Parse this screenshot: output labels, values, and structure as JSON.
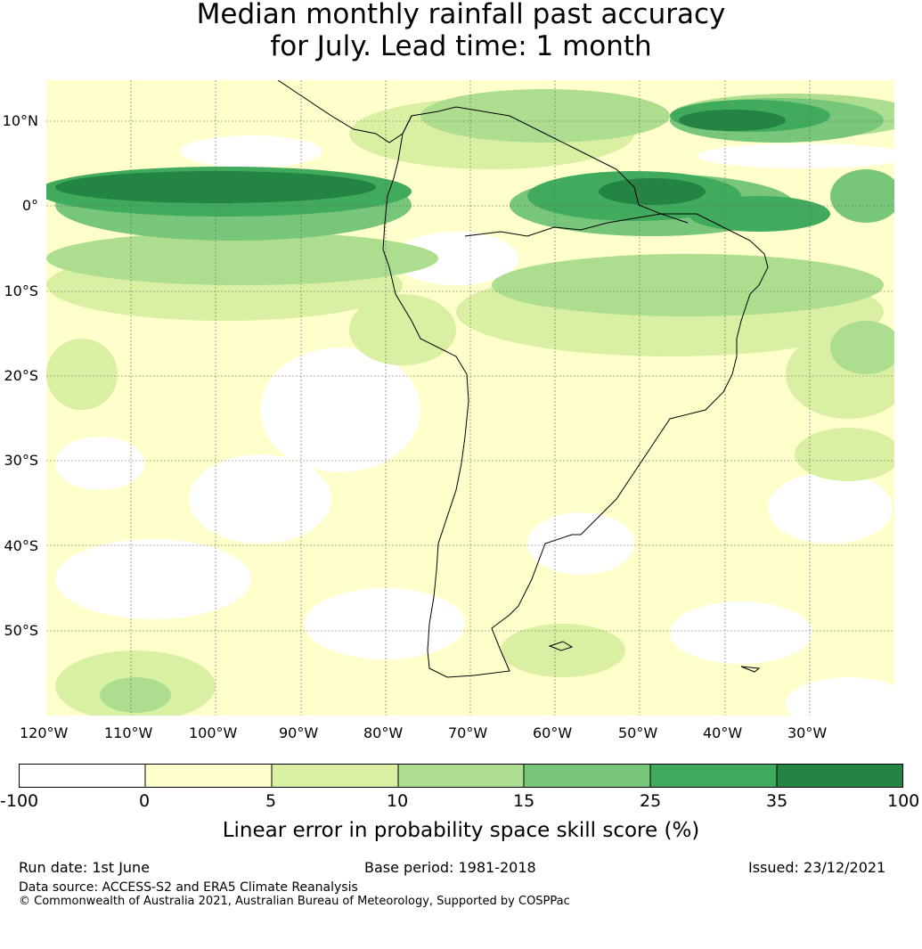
{
  "title_line1": "Median monthly rainfall past accuracy",
  "title_line2": "for July. Lead time: 1 month",
  "map": {
    "lat_labels": [
      "10°N",
      "0°",
      "10°S",
      "20°S",
      "30°S",
      "40°S",
      "50°S"
    ],
    "lon_labels": [
      "120°W",
      "110°W",
      "100°W",
      "90°W",
      "80°W",
      "70°W",
      "60°W",
      "50°W",
      "40°W",
      "30°W"
    ],
    "lon_range": [
      -125,
      -25
    ],
    "lat_range": [
      -60,
      15
    ],
    "gridlines": true
  },
  "colorbar": {
    "ticks": [
      "-100",
      "0",
      "5",
      "10",
      "15",
      "25",
      "35",
      "100"
    ],
    "colors": [
      "#ffffff",
      "#ffffcc",
      "#d9f0a3",
      "#addd8e",
      "#78c679",
      "#41ab5d",
      "#238443"
    ],
    "label": "Linear error in probability space skill score (%)"
  },
  "footer": {
    "run_date": "Run date: 1st June",
    "base_period": "Base period: 1981-2018",
    "issued": "Issued: 23/12/2021",
    "data_source": "Data source: ACCESS-S2 and ERA5 Climate Reanalysis",
    "copyright": "© Commonwealth of Australia 2021, Australian Bureau of Meteorology, Supported by COSPPac"
  }
}
